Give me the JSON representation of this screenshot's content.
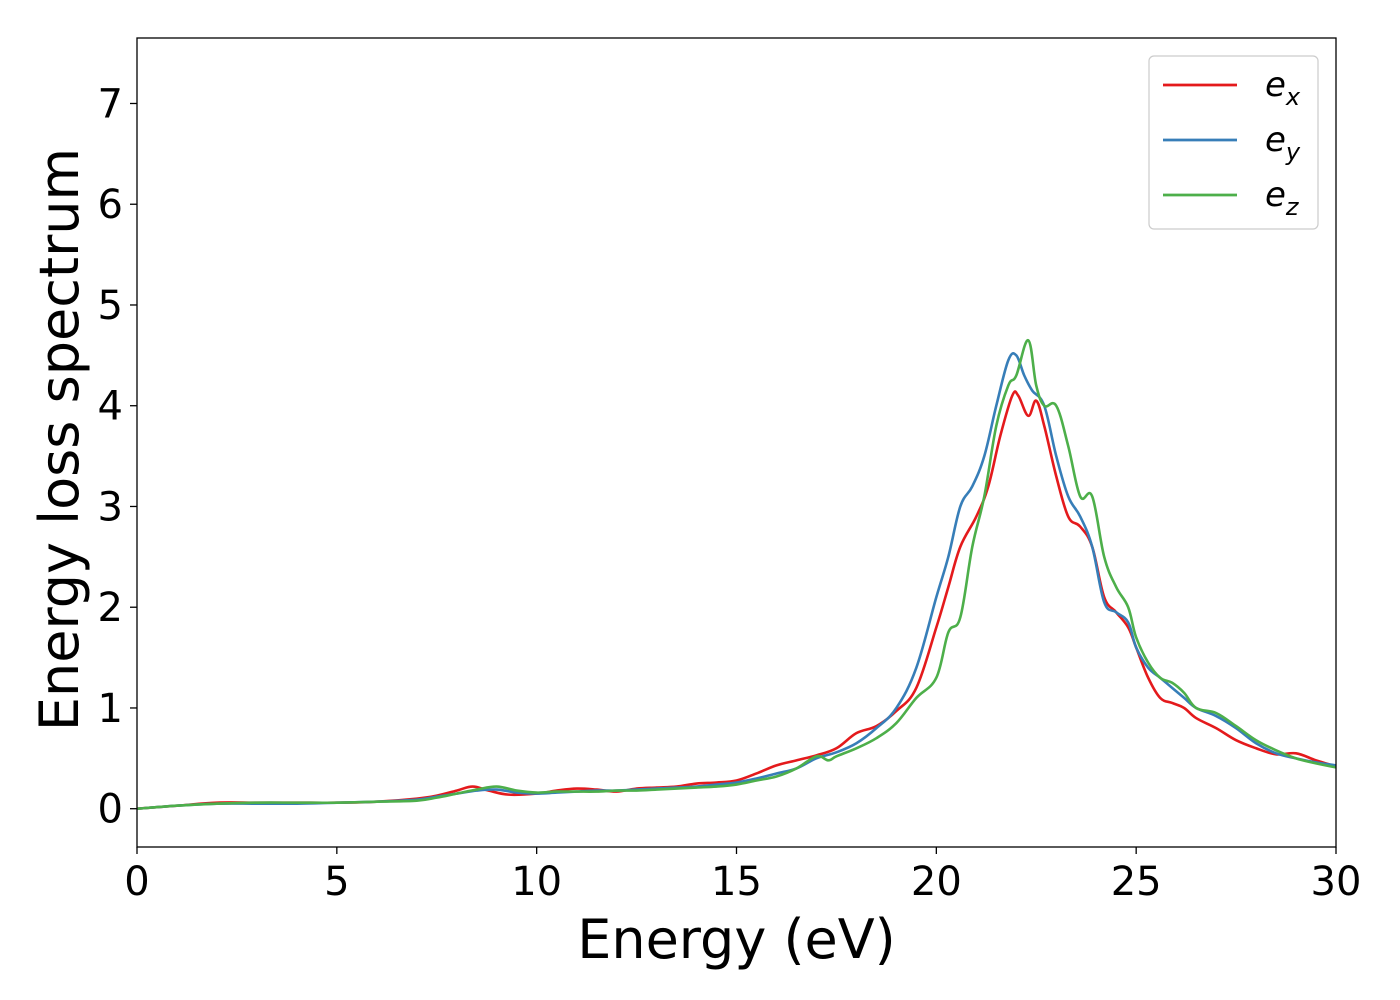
{
  "chart_data": {
    "type": "line",
    "title": "",
    "xlabel": "Energy (eV)",
    "ylabel": "Energy loss spectrum",
    "xlim": [
      0,
      30
    ],
    "ylim": [
      -0.38,
      7.65
    ],
    "xticks": [
      0,
      5,
      10,
      15,
      20,
      25,
      30
    ],
    "yticks": [
      0,
      1,
      2,
      3,
      4,
      5,
      6,
      7
    ],
    "grid": false,
    "legend_position": "top-right",
    "series": [
      {
        "name": "e_x",
        "label_base": "e",
        "label_sub": "x",
        "color": "#e41a1c",
        "x": [
          0,
          1,
          2,
          3,
          4,
          5,
          6,
          7,
          7.5,
          8,
          8.4,
          8.8,
          9.3,
          10,
          10.5,
          11,
          11.5,
          12,
          12.5,
          13,
          13.5,
          14,
          14.5,
          15,
          15.5,
          16,
          16.5,
          17,
          17.5,
          18,
          18.5,
          19,
          19.5,
          20,
          20.3,
          20.6,
          21,
          21.3,
          21.6,
          21.9,
          22.05,
          22.3,
          22.5,
          22.7,
          23,
          23.3,
          23.6,
          23.9,
          24.2,
          24.5,
          24.8,
          25,
          25.3,
          25.6,
          25.9,
          26.2,
          26.5,
          27,
          27.5,
          28,
          28.5,
          29,
          29.5,
          30
        ],
        "y": [
          0.0,
          0.03,
          0.06,
          0.06,
          0.06,
          0.06,
          0.07,
          0.1,
          0.13,
          0.18,
          0.22,
          0.18,
          0.14,
          0.15,
          0.18,
          0.2,
          0.19,
          0.17,
          0.2,
          0.21,
          0.22,
          0.25,
          0.26,
          0.28,
          0.35,
          0.43,
          0.48,
          0.53,
          0.6,
          0.75,
          0.82,
          0.97,
          1.2,
          1.8,
          2.2,
          2.6,
          2.9,
          3.2,
          3.7,
          4.1,
          4.1,
          3.9,
          4.05,
          3.8,
          3.3,
          2.9,
          2.8,
          2.6,
          2.1,
          1.95,
          1.8,
          1.6,
          1.3,
          1.1,
          1.05,
          1.0,
          0.9,
          0.8,
          0.68,
          0.6,
          0.54,
          0.55,
          0.48,
          0.42
        ]
      },
      {
        "name": "e_y",
        "label_base": "e",
        "label_sub": "y",
        "color": "#377eb8",
        "x": [
          0,
          1,
          2,
          3,
          4,
          5,
          6,
          7,
          7.5,
          8,
          8.5,
          9,
          9.5,
          10,
          10.5,
          11,
          11.5,
          12,
          12.5,
          13,
          13.5,
          14,
          14.5,
          15,
          15.5,
          16,
          16.5,
          17,
          17.5,
          18,
          18.5,
          19,
          19.5,
          20,
          20.3,
          20.6,
          20.9,
          21.2,
          21.5,
          21.8,
          22.0,
          22.2,
          22.4,
          22.7,
          23,
          23.3,
          23.6,
          23.9,
          24.2,
          24.5,
          24.8,
          25,
          25.3,
          25.6,
          25.9,
          26.2,
          26.5,
          27,
          27.5,
          28,
          28.5,
          29,
          29.5,
          30
        ],
        "y": [
          0.0,
          0.03,
          0.05,
          0.05,
          0.05,
          0.06,
          0.07,
          0.09,
          0.12,
          0.15,
          0.18,
          0.19,
          0.16,
          0.15,
          0.16,
          0.17,
          0.18,
          0.18,
          0.19,
          0.2,
          0.21,
          0.22,
          0.24,
          0.26,
          0.3,
          0.35,
          0.4,
          0.5,
          0.56,
          0.65,
          0.8,
          1.0,
          1.4,
          2.1,
          2.5,
          3.0,
          3.2,
          3.5,
          4.0,
          4.45,
          4.5,
          4.3,
          4.15,
          4.0,
          3.5,
          3.1,
          2.9,
          2.6,
          2.05,
          1.95,
          1.85,
          1.6,
          1.4,
          1.3,
          1.2,
          1.1,
          1.0,
          0.92,
          0.8,
          0.65,
          0.55,
          0.5,
          0.46,
          0.43
        ]
      },
      {
        "name": "e_z",
        "label_base": "e",
        "label_sub": "z",
        "color": "#4daf4a",
        "x": [
          0,
          1,
          2,
          3,
          4,
          5,
          6,
          7,
          7.5,
          8,
          8.5,
          9,
          9.5,
          10,
          10.5,
          11,
          11.5,
          12,
          12.5,
          13,
          13.5,
          14,
          14.5,
          15,
          15.5,
          16,
          16.5,
          17,
          17.3,
          17.5,
          18,
          18.5,
          19,
          19.5,
          20,
          20.3,
          20.6,
          20.9,
          21.2,
          21.5,
          21.8,
          22.0,
          22.3,
          22.5,
          22.7,
          23,
          23.3,
          23.6,
          23.9,
          24.2,
          24.5,
          24.8,
          25,
          25.3,
          25.6,
          25.9,
          26.2,
          26.5,
          27,
          27.5,
          28,
          28.5,
          29,
          29.5,
          30
        ],
        "y": [
          0.0,
          0.03,
          0.05,
          0.06,
          0.06,
          0.06,
          0.07,
          0.08,
          0.11,
          0.15,
          0.19,
          0.22,
          0.18,
          0.16,
          0.17,
          0.17,
          0.17,
          0.18,
          0.18,
          0.19,
          0.2,
          0.21,
          0.22,
          0.24,
          0.28,
          0.32,
          0.4,
          0.52,
          0.48,
          0.52,
          0.6,
          0.7,
          0.85,
          1.1,
          1.3,
          1.75,
          1.9,
          2.6,
          3.1,
          3.8,
          4.2,
          4.3,
          4.65,
          4.2,
          4.0,
          4.0,
          3.6,
          3.1,
          3.1,
          2.5,
          2.2,
          2.0,
          1.7,
          1.45,
          1.3,
          1.25,
          1.15,
          1.0,
          0.95,
          0.82,
          0.68,
          0.58,
          0.5,
          0.45,
          0.41
        ]
      }
    ]
  }
}
